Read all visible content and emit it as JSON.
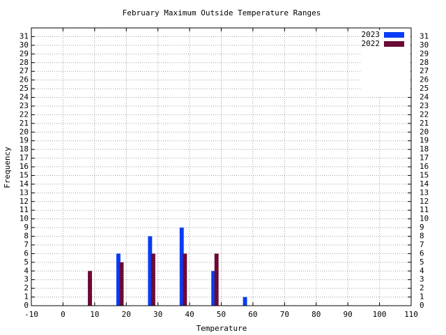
{
  "chart_data": {
    "type": "bar",
    "title": "February Maximum Outside Temperature Ranges",
    "x_label": "Temperature",
    "y_label": "Frequency",
    "xlim": [
      -10,
      110
    ],
    "xticks": [
      -10,
      0,
      10,
      20,
      30,
      40,
      50,
      60,
      70,
      80,
      90,
      100,
      110
    ],
    "ylim": [
      0,
      32
    ],
    "yticks": [
      0,
      1,
      2,
      3,
      4,
      5,
      6,
      7,
      8,
      9,
      10,
      11,
      12,
      13,
      14,
      15,
      16,
      17,
      18,
      19,
      20,
      21,
      22,
      23,
      24,
      25,
      26,
      27,
      28,
      29,
      30,
      31
    ],
    "grid": true,
    "legend": "top-right",
    "series": [
      {
        "name": "2023",
        "color": "#0a3cf5",
        "x": [
          17.5,
          27.5,
          37.5,
          47.5,
          57.5
        ],
        "values": [
          6,
          8,
          9,
          4,
          1
        ]
      },
      {
        "name": "2022",
        "color": "#6b0a35",
        "x": [
          8.5,
          18.5,
          28.5,
          38.5,
          48.5
        ],
        "values": [
          4,
          5,
          6,
          6,
          6
        ]
      }
    ]
  }
}
